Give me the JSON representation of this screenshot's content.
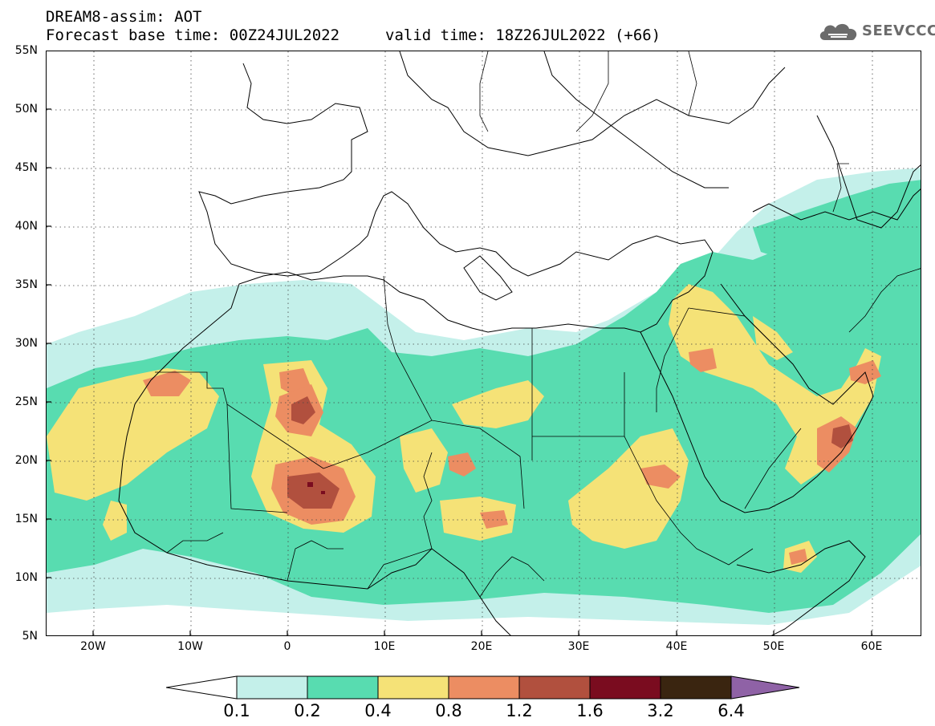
{
  "header": {
    "line1": "DREAM8-assim: AOT",
    "line2": "Forecast base time: 00Z24JUL2022",
    "valid": "valid time: 18Z26JUL2022 (+66)"
  },
  "logo": {
    "text": "SEEVCCC",
    "icon": "cloud-icon"
  },
  "axes": {
    "lat_labels": [
      "55N",
      "50N",
      "45N",
      "40N",
      "35N",
      "30N",
      "25N",
      "20N",
      "15N",
      "10N",
      "5N"
    ],
    "lon_labels": [
      "20W",
      "10W",
      "0",
      "10E",
      "20E",
      "30E",
      "40E",
      "50E",
      "60E"
    ]
  },
  "colorbar": {
    "labels": [
      "0.1",
      "0.2",
      "0.4",
      "0.8",
      "1.2",
      "1.6",
      "3.2",
      "6.4"
    ],
    "colors": [
      "#c4f0ea",
      "#58dcb0",
      "#f5e277",
      "#ec8d62",
      "#b1503e",
      "#7a0c1f",
      "#3a2510",
      "#8f62a6"
    ],
    "under_color": "#ffffff"
  },
  "palette": {
    "aot_01_02": "#c4f0ea",
    "aot_02_04": "#58dcb0",
    "aot_04_08": "#f5e277",
    "aot_08_12": "#ec8d62",
    "aot_12_16": "#b1503e",
    "aot_16_32": "#7a0c1f"
  }
}
